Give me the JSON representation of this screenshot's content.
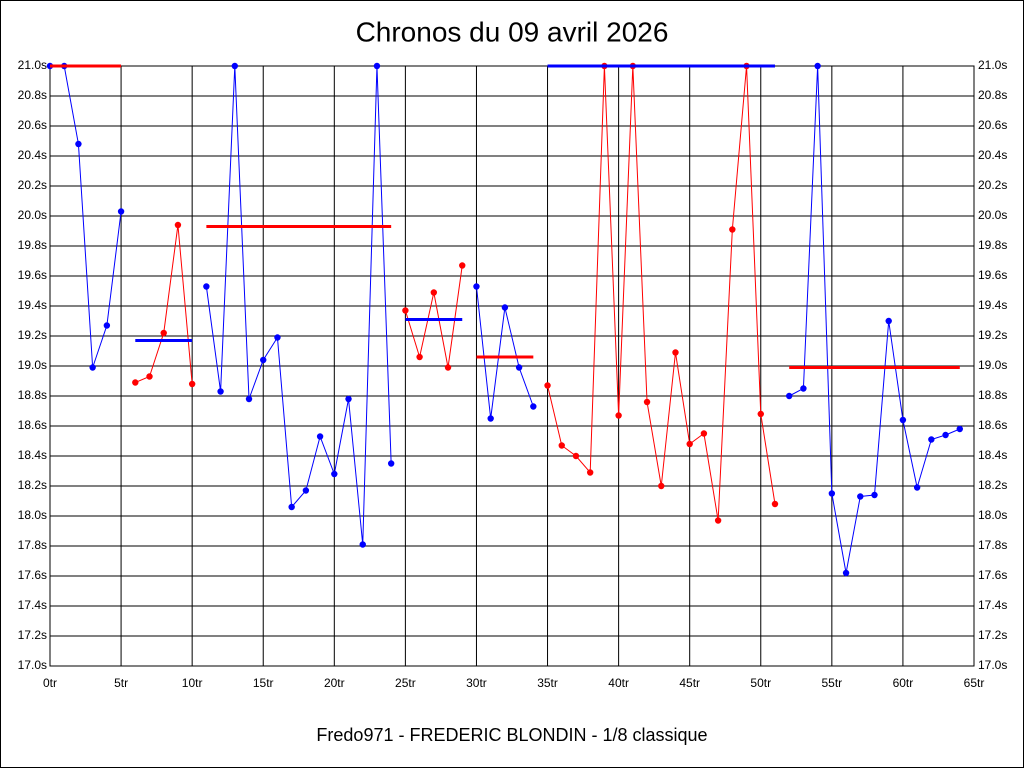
{
  "chart_data": {
    "type": "line",
    "title": "Chronos du 09 avril 2026",
    "x_label": "Fredo971 - FREDERIC BLONDIN - 1/8 classique",
    "xlim": [
      0,
      65
    ],
    "ylim": [
      17.0,
      21.0
    ],
    "xticks": [
      {
        "value": 0,
        "label": "0tr"
      },
      {
        "value": 5,
        "label": "5tr"
      },
      {
        "value": 10,
        "label": "10tr"
      },
      {
        "value": 15,
        "label": "15tr"
      },
      {
        "value": 20,
        "label": "20tr"
      },
      {
        "value": 25,
        "label": "25tr"
      },
      {
        "value": 30,
        "label": "30tr"
      },
      {
        "value": 35,
        "label": "35tr"
      },
      {
        "value": 40,
        "label": "40tr"
      },
      {
        "value": 45,
        "label": "45tr"
      },
      {
        "value": 50,
        "label": "50tr"
      },
      {
        "value": 55,
        "label": "55tr"
      },
      {
        "value": 60,
        "label": "60tr"
      },
      {
        "value": 65,
        "label": "65tr"
      }
    ],
    "yticks": [
      {
        "value": 17.0,
        "label": "17.0s"
      },
      {
        "value": 17.2,
        "label": "17.2s"
      },
      {
        "value": 17.4,
        "label": "17.4s"
      },
      {
        "value": 17.6,
        "label": "17.6s"
      },
      {
        "value": 17.8,
        "label": "17.8s"
      },
      {
        "value": 18.0,
        "label": "18.0s"
      },
      {
        "value": 18.2,
        "label": "18.2s"
      },
      {
        "value": 18.4,
        "label": "18.4s"
      },
      {
        "value": 18.6,
        "label": "18.6s"
      },
      {
        "value": 18.8,
        "label": "18.8s"
      },
      {
        "value": 19.0,
        "label": "19.0s"
      },
      {
        "value": 19.2,
        "label": "19.2s"
      },
      {
        "value": 19.4,
        "label": "19.4s"
      },
      {
        "value": 19.6,
        "label": "19.6s"
      },
      {
        "value": 19.8,
        "label": "19.8s"
      },
      {
        "value": 20.0,
        "label": "20.0s"
      },
      {
        "value": 20.2,
        "label": "20.2s"
      },
      {
        "value": 20.4,
        "label": "20.4s"
      },
      {
        "value": 20.6,
        "label": "20.6s"
      },
      {
        "value": 20.8,
        "label": "20.8s"
      },
      {
        "value": 21.0,
        "label": "21.0s"
      }
    ],
    "grid": true,
    "series": [
      {
        "color": "#0000ff",
        "x": [
          0,
          1,
          2,
          3,
          4,
          5
        ],
        "values": [
          21.0,
          21.0,
          20.48,
          18.99,
          19.27,
          20.03
        ],
        "average": {
          "value": 21.0,
          "from": 0,
          "to": 5,
          "color": "#ff0000"
        }
      },
      {
        "color": "#ff0000",
        "x": [
          6,
          7,
          8,
          9,
          10
        ],
        "values": [
          18.89,
          18.93,
          19.22,
          19.94,
          18.88
        ],
        "average": {
          "value": 19.17,
          "from": 6,
          "to": 10,
          "color": "#0000ff"
        }
      },
      {
        "color": "#0000ff",
        "x": [
          11,
          12,
          13,
          14,
          15,
          16,
          17,
          18,
          19,
          20,
          21,
          22,
          23,
          24
        ],
        "values": [
          19.53,
          18.83,
          21.0,
          18.78,
          19.04,
          19.19,
          18.06,
          18.17,
          18.53,
          18.28,
          18.78,
          17.81,
          21.0,
          18.35
        ],
        "average": {
          "value": 19.93,
          "from": 11,
          "to": 24,
          "color": "#ff0000"
        }
      },
      {
        "color": "#ff0000",
        "x": [
          25,
          26,
          27,
          28,
          29
        ],
        "values": [
          19.37,
          19.06,
          19.49,
          18.99,
          19.67
        ],
        "average": {
          "value": 19.31,
          "from": 25,
          "to": 29,
          "color": "#0000ff"
        }
      },
      {
        "color": "#0000ff",
        "x": [
          30,
          31,
          32,
          33,
          34
        ],
        "values": [
          19.53,
          18.65,
          19.39,
          18.99,
          18.73
        ],
        "average": {
          "value": 19.06,
          "from": 30,
          "to": 34,
          "color": "#ff0000"
        }
      },
      {
        "color": "#ff0000",
        "x": [
          35,
          36,
          37,
          38,
          39,
          40,
          41,
          42,
          43,
          44,
          45,
          46,
          47,
          48,
          49,
          50,
          51
        ],
        "values": [
          18.87,
          18.47,
          18.4,
          18.29,
          21.0,
          18.67,
          21.0,
          18.76,
          18.2,
          19.09,
          18.48,
          18.55,
          17.97,
          19.91,
          21.0,
          18.68,
          18.08
        ],
        "average": {
          "value": 21.0,
          "from": 35,
          "to": 51,
          "color": "#0000ff"
        }
      },
      {
        "color": "#0000ff",
        "x": [
          52,
          53,
          54,
          55,
          56,
          57,
          58,
          59,
          60,
          61,
          62,
          63,
          64
        ],
        "values": [
          18.8,
          18.85,
          21.0,
          18.15,
          17.62,
          18.13,
          18.14,
          19.3,
          18.64,
          18.19,
          18.51,
          18.54,
          18.58
        ],
        "average": {
          "value": 18.99,
          "from": 52,
          "to": 64,
          "color": "#ff0000"
        }
      }
    ]
  }
}
